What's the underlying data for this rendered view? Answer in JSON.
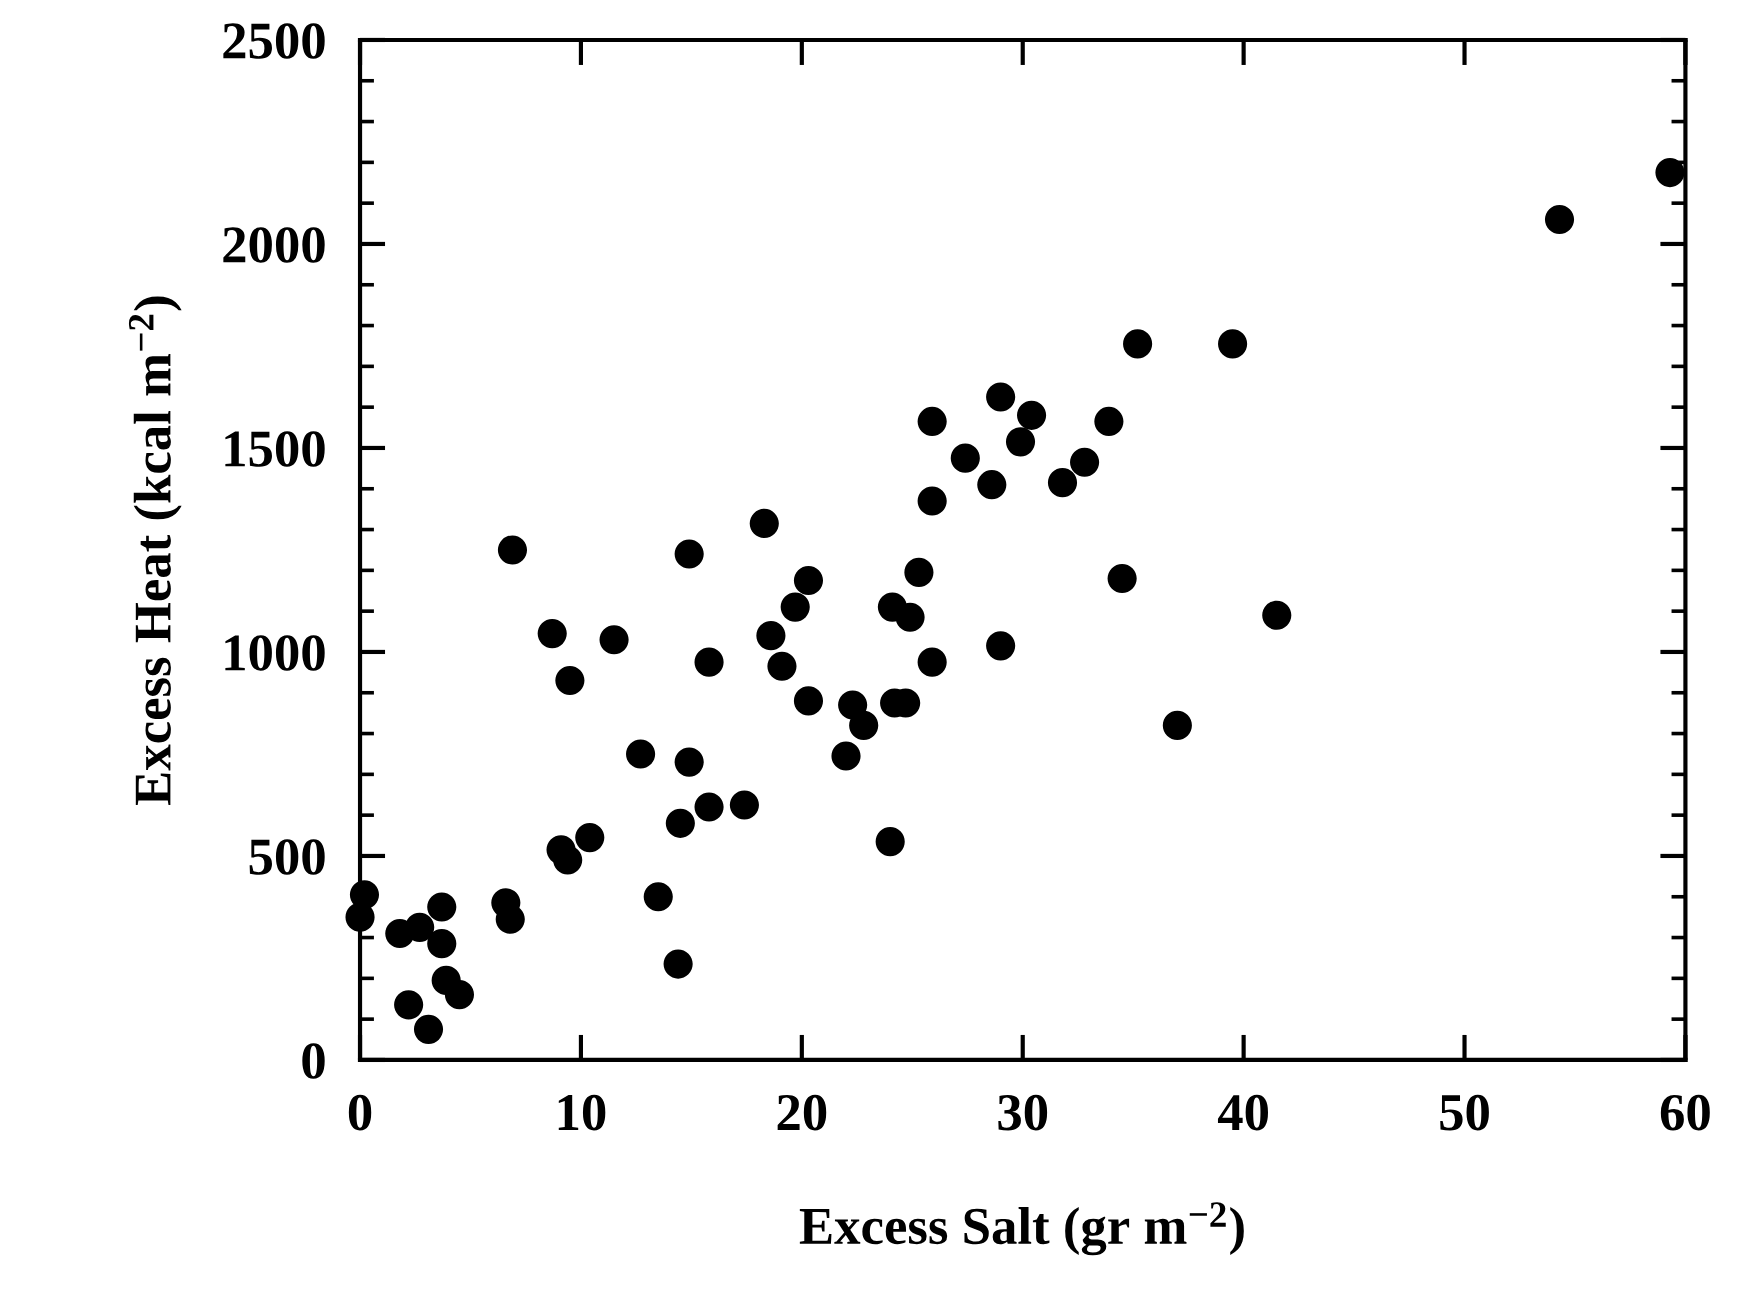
{
  "chart_data": {
    "type": "scatter",
    "xlabel": "Excess Salt (gr m$^{−2}$)",
    "ylabel": "Excess Heat (kcal m$^{−2}$)",
    "xlim": [
      0,
      60
    ],
    "xticks": [
      0,
      10,
      20,
      30,
      40,
      50,
      60
    ],
    "ylim": [
      0,
      2500
    ],
    "yticks": [
      0,
      500,
      1000,
      1500,
      2000,
      2500
    ],
    "grid": false,
    "marker": "circle",
    "series": [
      {
        "color": "#000000",
        "x": [
          0.2,
          0.0,
          1.8,
          2.7,
          3.7,
          3.7,
          2.2,
          3.1,
          3.9,
          4.5,
          6.6,
          6.8,
          6.9,
          8.7,
          9.5,
          11.5,
          9.1,
          9.4,
          10.4,
          12.7,
          13.5,
          14.4,
          14.5,
          14.9,
          14.9,
          15.8,
          15.8,
          17.4,
          18.3,
          18.6,
          19.1,
          19.7,
          20.3,
          20.3,
          22.0,
          22.3,
          22.8,
          24.0,
          24.2,
          24.7,
          24.1,
          24.9,
          25.3,
          25.9,
          25.9,
          25.9,
          27.4,
          28.6,
          29.0,
          29.0,
          29.9,
          30.4,
          31.8,
          32.8,
          33.9,
          35.2,
          39.5,
          34.5,
          37.0,
          41.5,
          54.3,
          59.3
        ],
        "values": [
          405,
          350,
          310,
          325,
          375,
          285,
          135,
          75,
          195,
          160,
          385,
          345,
          1250,
          1045,
          930,
          1030,
          515,
          490,
          545,
          750,
          400,
          235,
          580,
          730,
          1240,
          975,
          620,
          625,
          1315,
          1040,
          965,
          1110,
          1175,
          880,
          745,
          870,
          820,
          535,
          875,
          875,
          1110,
          1085,
          1195,
          975,
          1370,
          1565,
          1475,
          1410,
          1015,
          1625,
          1515,
          1580,
          1415,
          1465,
          1565,
          1755,
          1755,
          1180,
          820,
          1090,
          2060,
          2175
        ]
      }
    ]
  }
}
